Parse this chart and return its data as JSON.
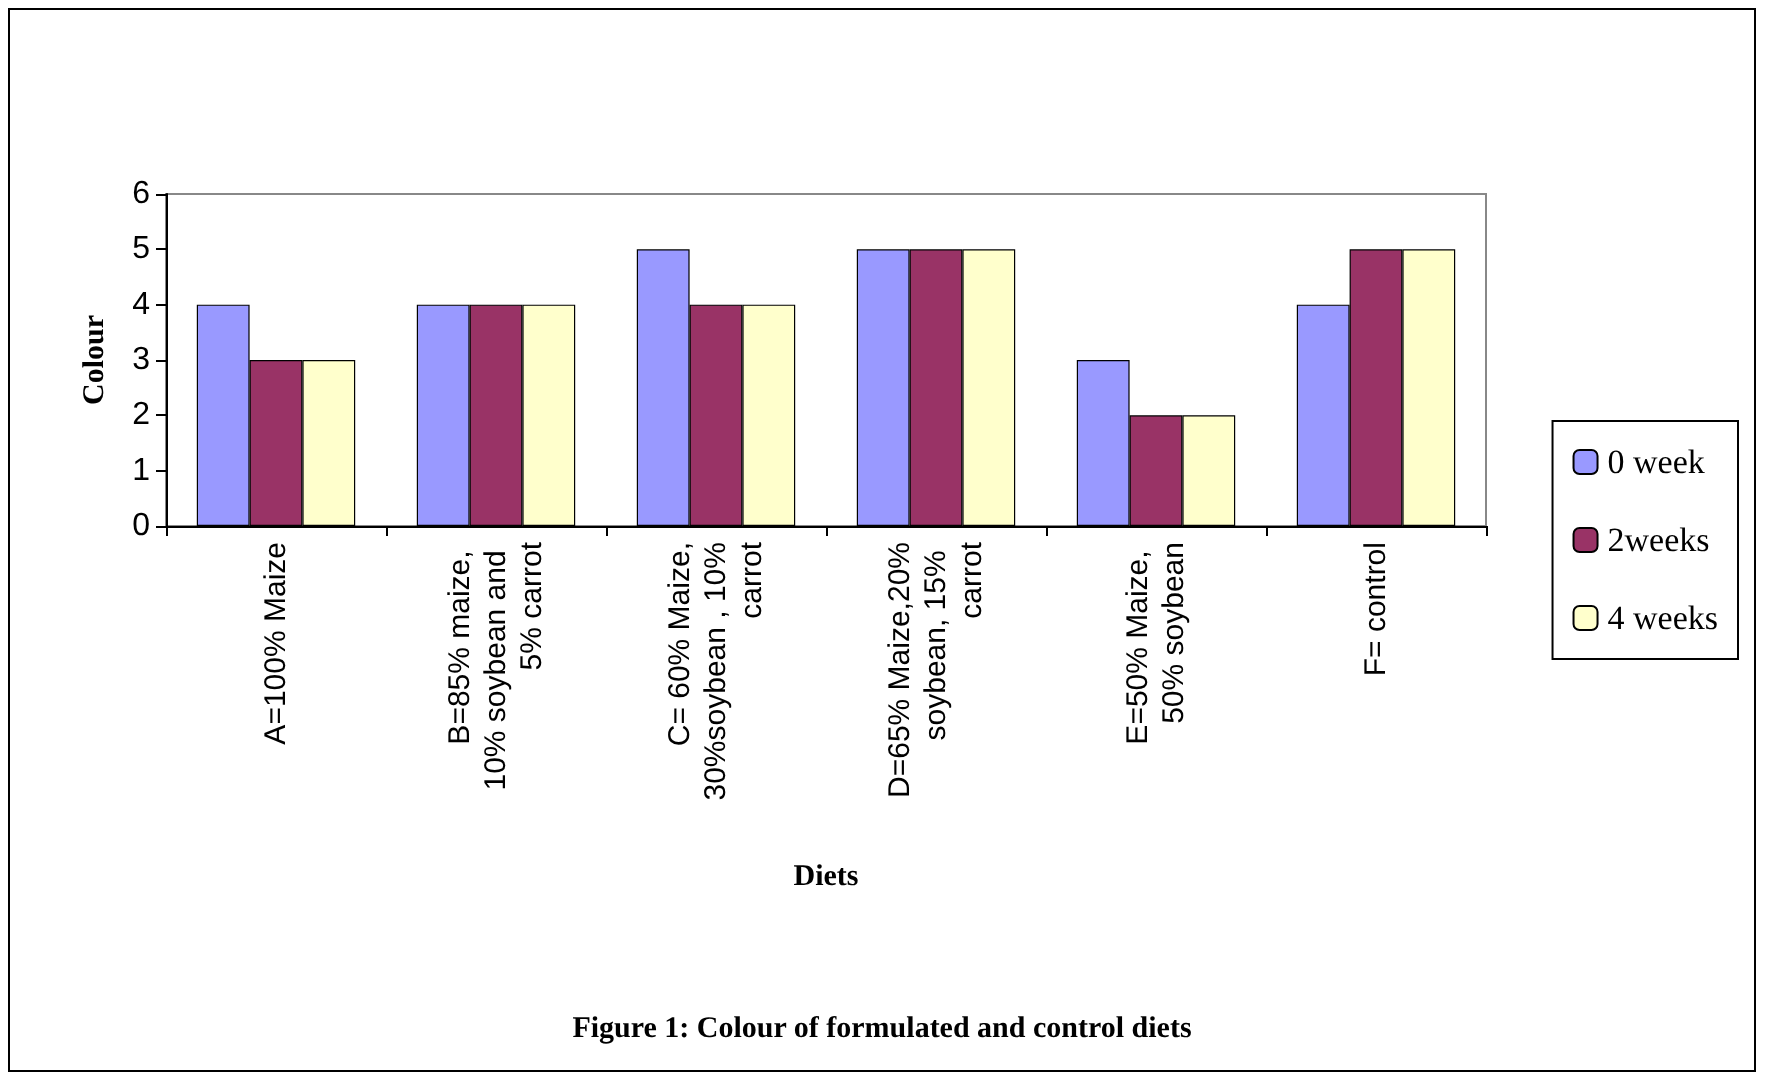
{
  "chart_data": {
    "type": "bar",
    "title": "Figure 1: Colour of formulated and control diets",
    "xlabel": "Diets",
    "ylabel": "Colour",
    "categories": [
      "A=100% Maize",
      "B=85% maize, 10% soybean and 5% carrot",
      "C= 60% Maize,30%soybean , 10% carrot",
      "D=65% Maize,20% soybean, 15% carrot",
      "E=50% Maize, 50% soybean",
      "F= control"
    ],
    "series": [
      {
        "name": "0 week",
        "color": "#9999ff",
        "values": [
          4,
          4,
          5,
          5,
          3,
          4
        ]
      },
      {
        "name": "2weeks",
        "color": "#993366",
        "values": [
          3,
          4,
          4,
          5,
          2,
          5
        ]
      },
      {
        "name": "4 weeks",
        "color": "#ffffcc",
        "values": [
          3,
          4,
          4,
          5,
          2,
          5
        ]
      }
    ],
    "ylim": [
      0,
      6
    ],
    "yticks": [
      0,
      1,
      2,
      3,
      4,
      5,
      6
    ],
    "grid": false,
    "legend": "right"
  }
}
